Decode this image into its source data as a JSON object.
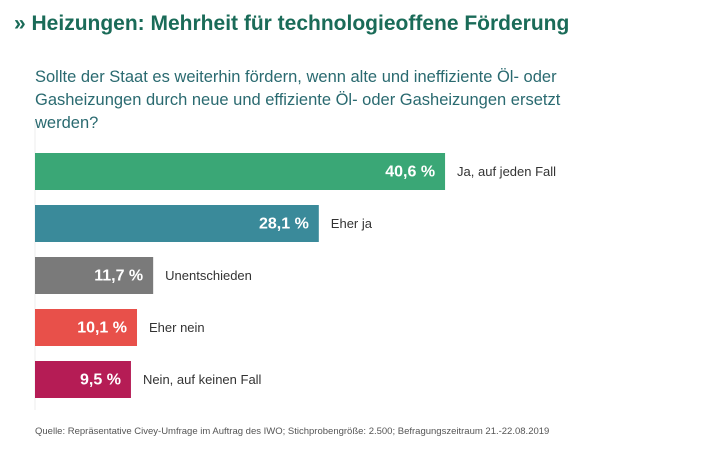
{
  "chart_data": {
    "type": "bar",
    "orientation": "horizontal",
    "title": "» Heizungen: Mehrheit für technologieoffene Förderung",
    "subtitle": "Sollte der Staat es weiterhin fördern, wenn alte und ineffiziente Öl- oder Gasheizungen durch neue und effiziente Öl- oder Gasheizungen ersetzt werden?",
    "categories": [
      "Ja, auf jeden Fall",
      "Eher ja",
      "Unentschieden",
      "Eher nein",
      "Nein, auf keinen Fall"
    ],
    "values": [
      40.6,
      28.1,
      11.7,
      10.1,
      9.5
    ],
    "value_labels": [
      "40,6 %",
      "28,1 %",
      "11,7 %",
      "10,1 %",
      "9,5 %"
    ],
    "colors": [
      "#3aa776",
      "#3a8a9a",
      "#7a7a7a",
      "#e8504a",
      "#b51c55"
    ],
    "source": "Quelle: Repräsentative Civey-Umfrage im Auftrag des IWO; Stichprobengröße: 2.500; Befragungszeitraum 21.-22.08.2019"
  }
}
